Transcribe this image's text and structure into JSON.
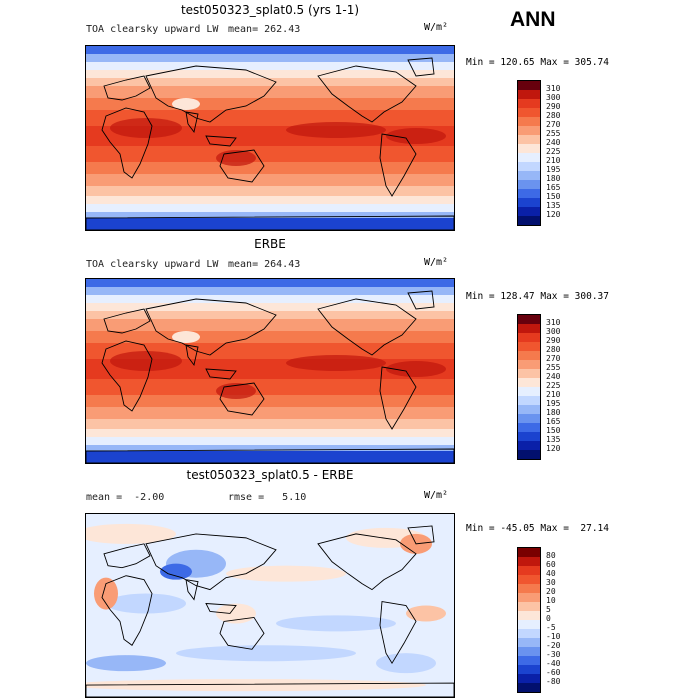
{
  "season": "ANN",
  "panels": [
    {
      "title": "test050323_splat0.5 (yrs 1-1)",
      "field": "TOA clearsky upward LW",
      "stats": "mean= 262.43",
      "units": "W/m²",
      "minmax": "Min = 120.65 Max = 305.74",
      "colorbar_levels": [
        "310",
        "300",
        "290",
        "280",
        "270",
        "255",
        "240",
        "225",
        "210",
        "195",
        "180",
        "165",
        "150",
        "135",
        "120"
      ]
    },
    {
      "title": "ERBE",
      "field": "TOA clearsky upward LW",
      "stats": "mean= 264.43",
      "units": "W/m²",
      "minmax": "Min = 128.47 Max = 300.37",
      "colorbar_levels": [
        "310",
        "300",
        "290",
        "280",
        "270",
        "255",
        "240",
        "225",
        "210",
        "195",
        "180",
        "165",
        "150",
        "135",
        "120"
      ]
    },
    {
      "title": "test050323_splat0.5 - ERBE",
      "field": "mean =  -2.00",
      "stats": "rmse =   5.10",
      "units": "W/m²",
      "minmax": "Min = -45.05 Max =  27.14",
      "colorbar_levels": [
        "80",
        "60",
        "40",
        "30",
        "20",
        "10",
        "5",
        "0",
        "-5",
        "-10",
        "-20",
        "-30",
        "-40",
        "-60",
        "-80"
      ]
    }
  ],
  "colors": {
    "abs_scale": [
      "#67000d",
      "#c0170d",
      "#e53a1f",
      "#f0562f",
      "#f57a4d",
      "#f99c75",
      "#fcc3a5",
      "#fde6d8",
      "#e6efff",
      "#c2d7ff",
      "#97b7f7",
      "#6a93ef",
      "#3d6ae6",
      "#1b43cf",
      "#0a20a8",
      "#02106e"
    ],
    "diff_scale": [
      "#7a0000",
      "#c0170d",
      "#e53a1f",
      "#f0562f",
      "#f57a4d",
      "#f99c75",
      "#fcc3a5",
      "#fde6d8",
      "#e6efff",
      "#c2d7ff",
      "#97b7f7",
      "#6a93ef",
      "#3d6ae6",
      "#1b43cf",
      "#0a20a8",
      "#02106e"
    ]
  },
  "chart_data": [
    {
      "type": "heatmap",
      "title": "test050323_splat0.5 (yrs 1-1)",
      "variable": "TOA clearsky upward LW",
      "units": "W/m2",
      "mean": 262.43,
      "min": 120.65,
      "max": 305.74,
      "contour_levels": [
        120,
        135,
        150,
        165,
        180,
        195,
        210,
        225,
        240,
        255,
        270,
        280,
        290,
        300,
        310
      ]
    },
    {
      "type": "heatmap",
      "title": "ERBE",
      "variable": "TOA clearsky upward LW",
      "units": "W/m2",
      "mean": 264.43,
      "min": 128.47,
      "max": 300.37,
      "contour_levels": [
        120,
        135,
        150,
        165,
        180,
        195,
        210,
        225,
        240,
        255,
        270,
        280,
        290,
        300,
        310
      ]
    },
    {
      "type": "heatmap",
      "title": "test050323_splat0.5 - ERBE",
      "units": "W/m2",
      "mean": -2.0,
      "rmse": 5.1,
      "min": -45.05,
      "max": 27.14,
      "contour_levels": [
        -80,
        -60,
        -40,
        -30,
        -20,
        -10,
        -5,
        0,
        5,
        10,
        20,
        30,
        40,
        60,
        80
      ]
    }
  ]
}
